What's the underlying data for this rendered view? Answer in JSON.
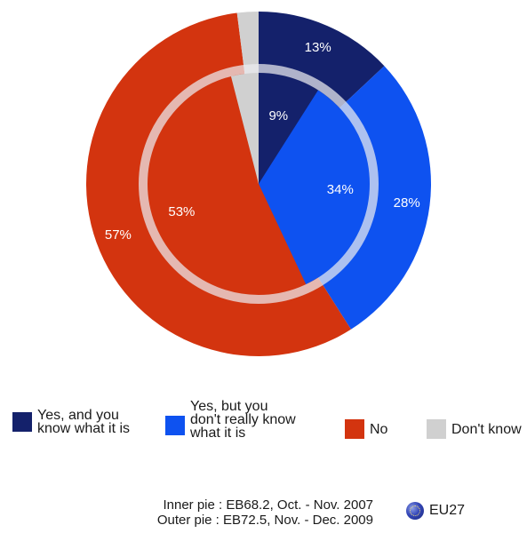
{
  "chart_data": {
    "type": "pie",
    "series": [
      {
        "name": "Outer pie : EB72.5, Nov. - Dec. 2009",
        "ring": "outer",
        "values": [
          {
            "category": "Yes, and you know what it is",
            "value": 13,
            "label": "13%",
            "color": "#14216b"
          },
          {
            "category": "Yes, but you don't really know what it is",
            "value": 28,
            "label": "28%",
            "color": "#0e52f0"
          },
          {
            "category": "No",
            "value": 57,
            "label": "57%",
            "color": "#d3340f"
          },
          {
            "category": "Don't know",
            "value": 2,
            "label": "",
            "color": "#d0d0d0"
          }
        ]
      },
      {
        "name": "Inner pie : EB68.2, Oct. - Nov. 2007",
        "ring": "inner",
        "values": [
          {
            "category": "Yes, and you know what it is",
            "value": 9,
            "label": "9%",
            "color": "#14216b"
          },
          {
            "category": "Yes, but you don't really know what it is",
            "value": 34,
            "label": "34%",
            "color": "#0e52f0"
          },
          {
            "category": "No",
            "value": 53,
            "label": "53%",
            "color": "#d3340f"
          },
          {
            "category": "Don't know",
            "value": 4,
            "label": "",
            "color": "#d0d0d0"
          }
        ]
      }
    ],
    "legend": {
      "position": "bottom",
      "entries": [
        {
          "label": "Yes, and you\nknow what it is",
          "color": "#14216b"
        },
        {
          "label": "Yes, but you\ndon't really know\nwhat it is",
          "color": "#0e52f0"
        },
        {
          "label": "No",
          "color": "#d3340f"
        },
        {
          "label": "Don't know",
          "color": "#d0d0d0"
        }
      ]
    },
    "footnote": [
      "Inner pie : EB68.2, Oct. - Nov. 2007",
      "Outer pie : EB72.5, Nov. - Dec. 2009"
    ],
    "region_label": "EU27"
  }
}
